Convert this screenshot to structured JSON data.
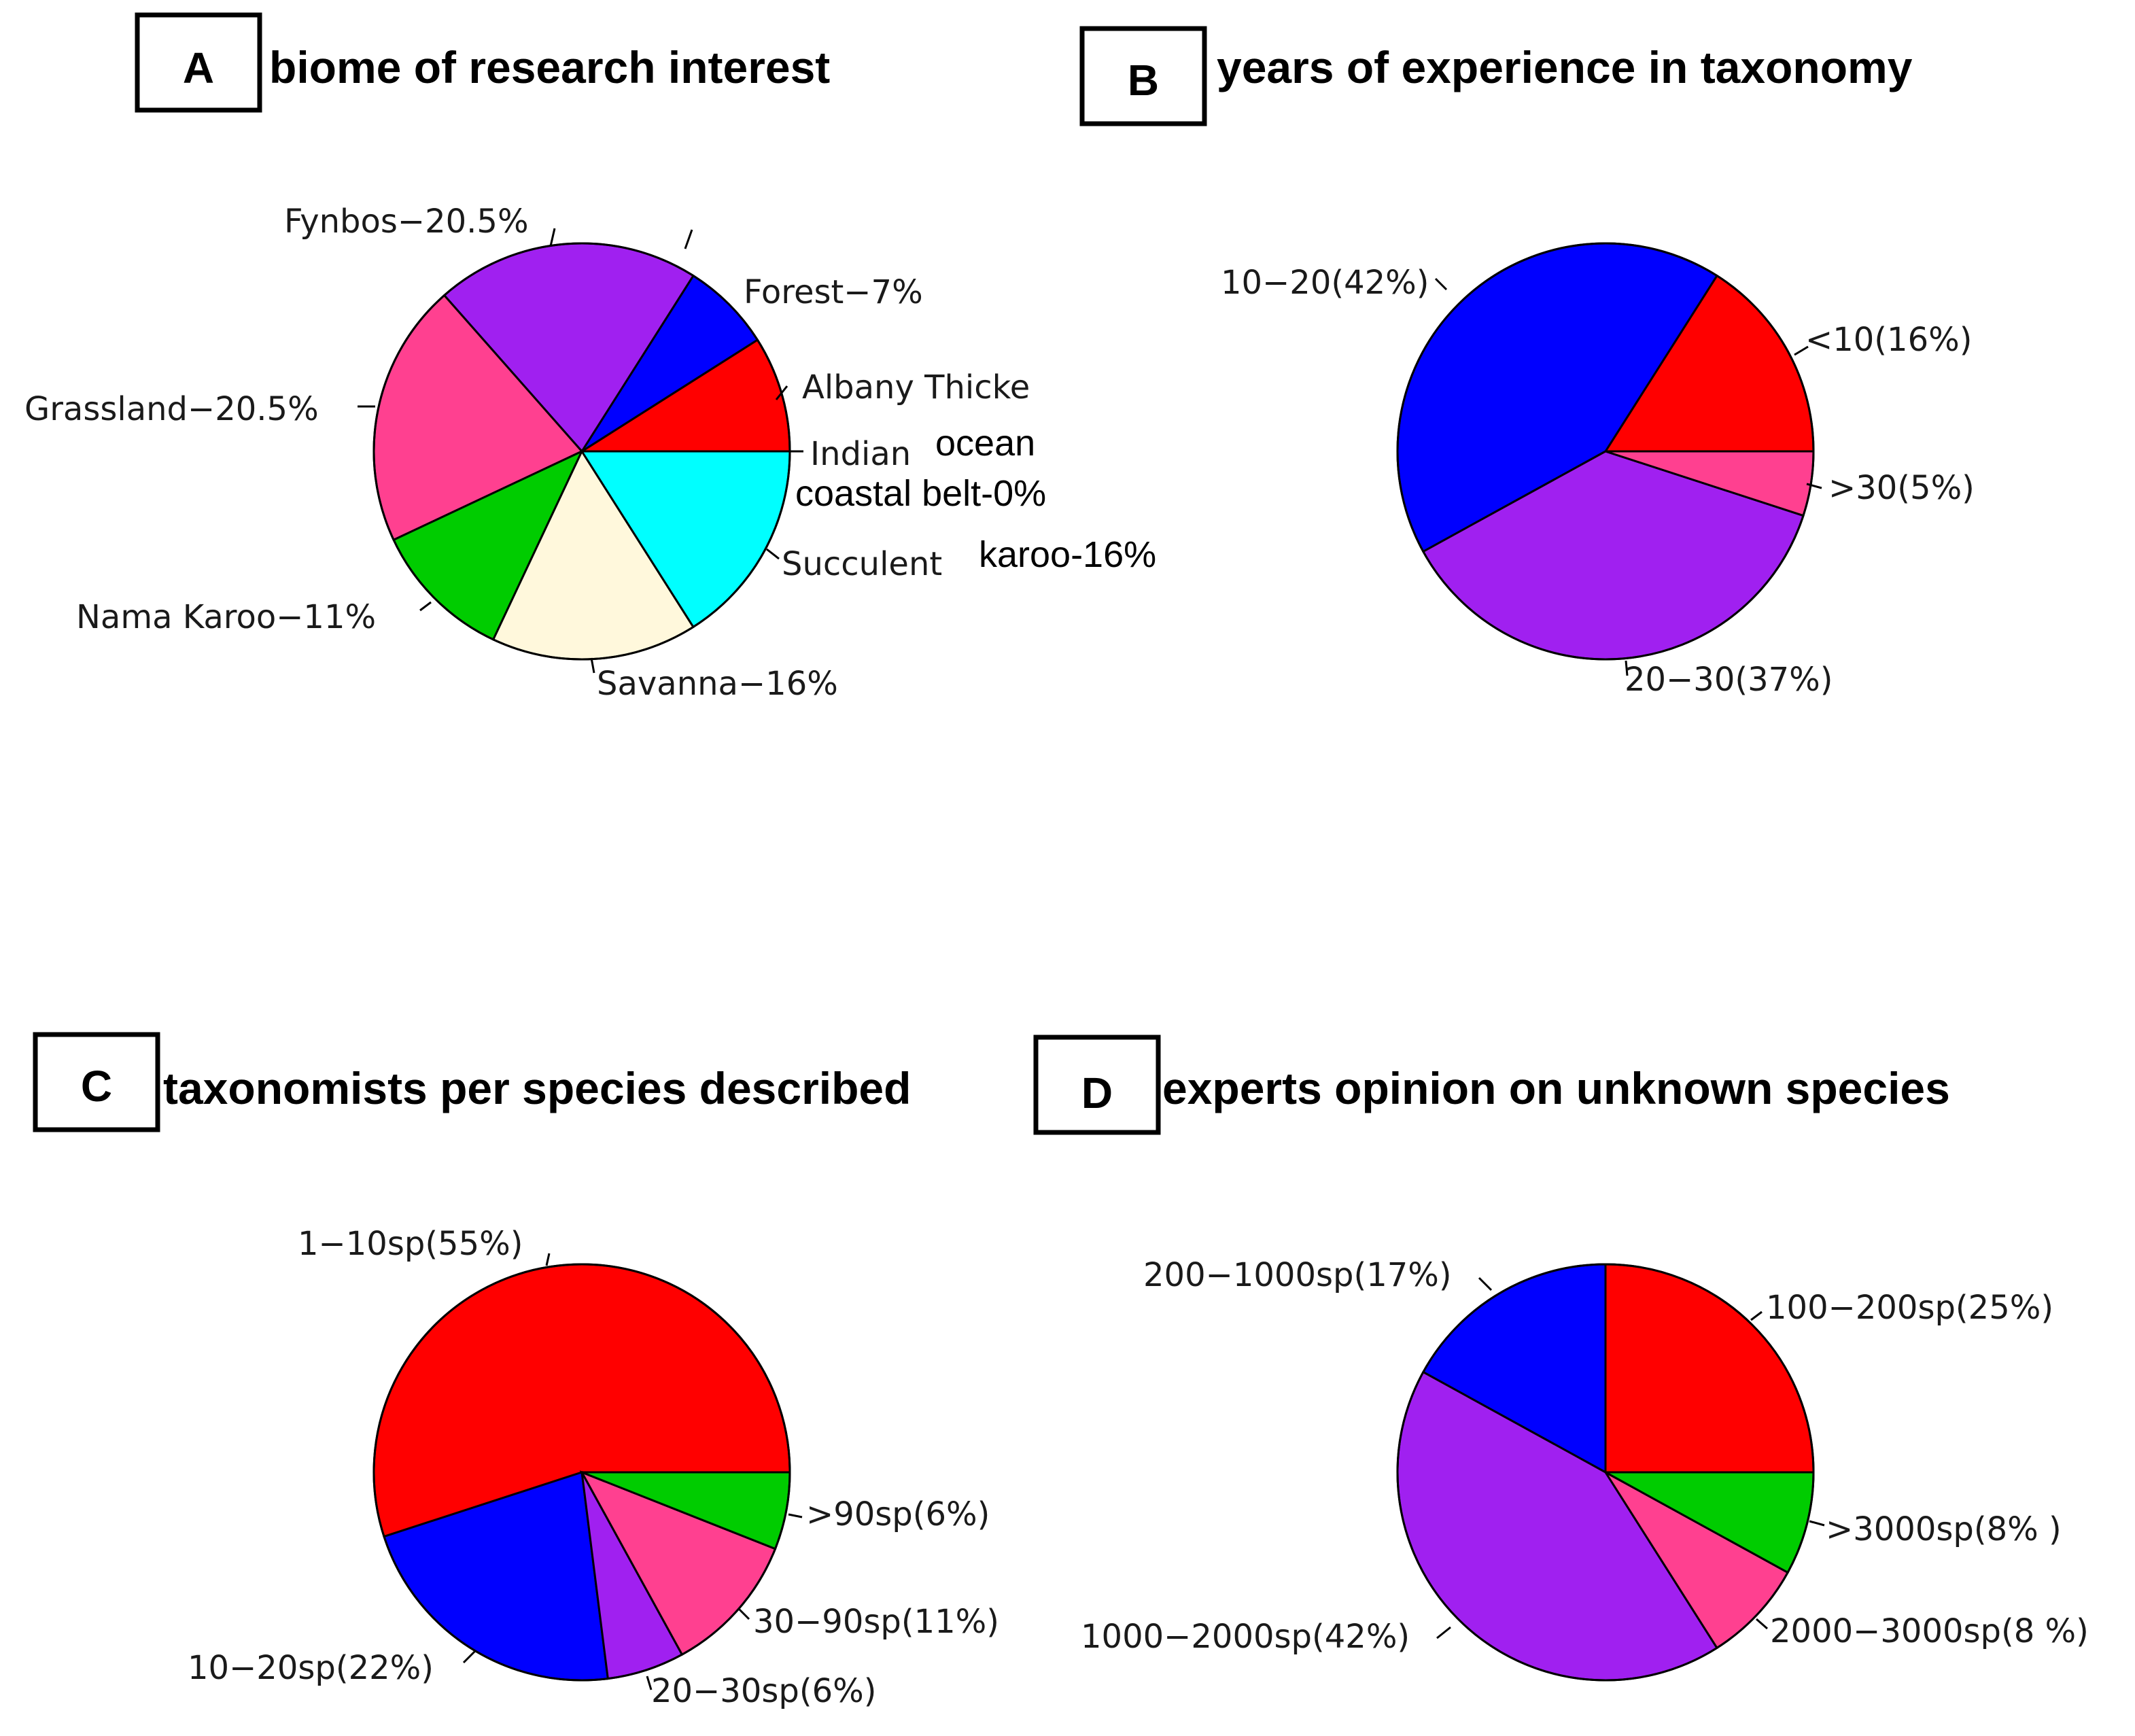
{
  "chart_data": [
    {
      "type": "pie",
      "panel": "A",
      "title": "biome of research interest",
      "slices": [
        {
          "label": "Albany Thicke",
          "value": 9,
          "color": "#ff0000"
        },
        {
          "label": "Forest−7%",
          "value": 7,
          "color": "#0000ff"
        },
        {
          "label": "Fynbos−20.5%",
          "value": 20.5,
          "color": "#a020f0"
        },
        {
          "label": "Grassland−20.5%",
          "value": 20.5,
          "color": "#ff4090"
        },
        {
          "label": "Nama Karoo−11%",
          "value": 11,
          "color": "#00cc00"
        },
        {
          "label": "Savanna−16%",
          "value": 16,
          "color": "#fff8dc"
        },
        {
          "label": "Succulent",
          "value": 16,
          "color": "#00ffff"
        },
        {
          "label": "Indian",
          "value": 0,
          "color": "#ffffff"
        }
      ],
      "extra_labels": {
        "indian_ocean": "ocean",
        "coastal_belt": "coastal belt-0%",
        "succulent_karoo": "karoo-16%"
      }
    },
    {
      "type": "pie",
      "panel": "B",
      "title": "years of experience in taxonomy",
      "slices": [
        {
          "label": "<10(16%)",
          "value": 16,
          "color": "#ff0000"
        },
        {
          "label": "10−20(42%)",
          "value": 42,
          "color": "#0000ff"
        },
        {
          "label": "20−30(37%)",
          "value": 37,
          "color": "#a020f0"
        },
        {
          "label": ">30(5%)",
          "value": 5,
          "color": "#ff4090"
        }
      ]
    },
    {
      "type": "pie",
      "panel": "C",
      "title": "taxonomists per species described",
      "slices": [
        {
          "label": "1−10sp(55%)",
          "value": 55,
          "color": "#ff0000"
        },
        {
          "label": "10−20sp(22%)",
          "value": 22,
          "color": "#0000ff"
        },
        {
          "label": "20−30sp(6%)",
          "value": 6,
          "color": "#a020f0"
        },
        {
          "label": "30−90sp(11%)",
          "value": 11,
          "color": "#ff4090"
        },
        {
          "label": ">90sp(6%)",
          "value": 6,
          "color": "#00cc00"
        }
      ]
    },
    {
      "type": "pie",
      "panel": "D",
      "title": "experts opinion on unknown species",
      "slices": [
        {
          "label": "100−200sp(25%)",
          "value": 25,
          "color": "#ff0000"
        },
        {
          "label": "200−1000sp(17%)",
          "value": 17,
          "color": "#0000ff"
        },
        {
          "label": "1000−2000sp(42%)",
          "value": 42,
          "color": "#a020f0"
        },
        {
          "label": "2000−3000sp(8 %)",
          "value": 8,
          "color": "#ff4090"
        },
        {
          "label": ">3000sp(8% )",
          "value": 8,
          "color": "#00cc00"
        }
      ]
    }
  ]
}
